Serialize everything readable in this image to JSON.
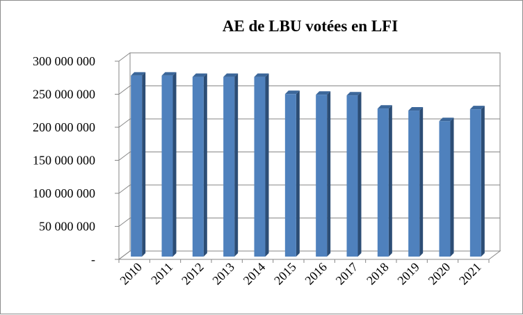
{
  "chart_data": {
    "type": "bar",
    "title": "AE de LBU votées en LFI",
    "xlabel": "",
    "ylabel": "",
    "categories": [
      "2010",
      "2011",
      "2012",
      "2013",
      "2014",
      "2015",
      "2016",
      "2017",
      "2018",
      "2019",
      "2020",
      "2021"
    ],
    "values": [
      274000000,
      274000000,
      272000000,
      272000000,
      272000000,
      246000000,
      245000000,
      244000000,
      224000000,
      221000000,
      205000000,
      223000000
    ],
    "ylim": [
      0,
      300000000
    ],
    "y_ticks": [
      0,
      50000000,
      100000000,
      150000000,
      200000000,
      250000000,
      300000000
    ],
    "y_tick_labels": [
      "-",
      "50 000 000",
      "100 000 000",
      "150 000 000",
      "200 000 000",
      "250 000 000",
      "300 000 000"
    ],
    "grid": true,
    "legend": "none",
    "style": "3d-column",
    "colors": {
      "bar_front": "#4f81bd",
      "bar_side": "#2c4d75",
      "bar_top": "#3c679a",
      "grid": "#868686",
      "axis": "#868686",
      "frame": "#8c8c8c"
    }
  }
}
